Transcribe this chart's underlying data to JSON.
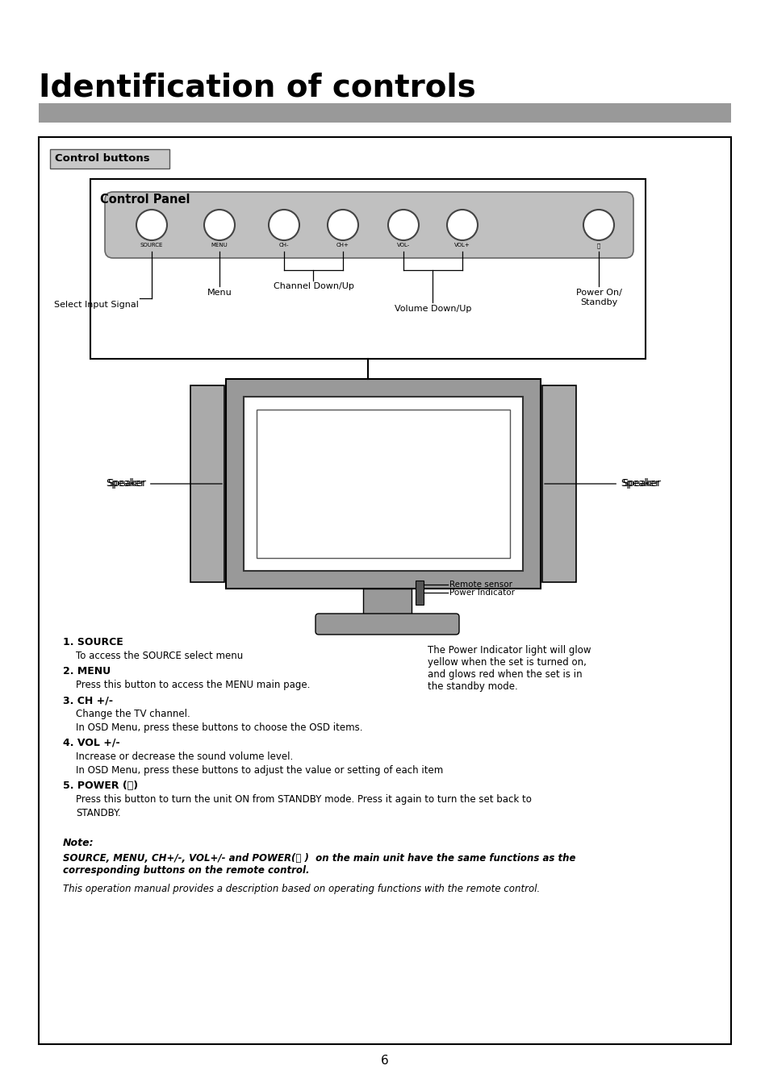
{
  "title": "Identification of controls",
  "page_number": "6",
  "bg_color": "#ffffff",
  "gray_bar_color": "#999999",
  "control_buttons_label": "Control buttons",
  "control_panel_label": "Control Panel",
  "button_labels": [
    "SOURCE",
    "MENU",
    "CH-",
    "CH+",
    "VOL-",
    "VOL+",
    "⏻"
  ],
  "panel_label_texts": [
    "Select Input Signal",
    "Menu",
    "Channel Down/Up",
    "Volume Down/Up",
    "Power On/\nStandby"
  ],
  "left_text_items": [
    [
      "1. SOURCE",
      "To access the SOURCE select menu"
    ],
    [
      "2. MENU",
      "Press this button to access the MENU main page."
    ],
    [
      "3. CH +/-",
      "Change the TV channel.\nIn OSD Menu, press these buttons to choose the OSD items."
    ],
    [
      "4. VOL +/-",
      "Increase or decrease the sound volume level.\nIn OSD Menu, press these buttons to adjust the value or setting of each item"
    ],
    [
      "5. POWER (⏻)",
      "Press this button to turn the unit ON from STANDBY mode. Press it again to turn the set back to\nSTANDBY."
    ]
  ],
  "right_text": "The Power Indicator light will glow\nyellow when the set is turned on,\nand glows red when the set is in\nthe standby mode.",
  "note_text": "Note:",
  "note_body1": "SOURCE, MENU, CH+/-, VOL+/- and POWER(⏻ )  on the main unit have the same functions as the\ncorresponding buttons on the remote control.",
  "note_body2": "This operation manual provides a description based on operating functions with the remote control.",
  "speaker_label": "Speaker",
  "remote_sensor_label": "Remote sensor",
  "power_indicator_label": "Power Indicator"
}
